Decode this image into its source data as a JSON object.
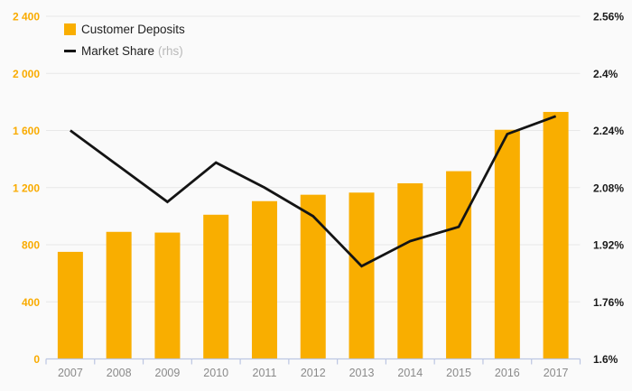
{
  "legend": {
    "deposits_label": "Customer Deposits",
    "market_share_label": "Market Share",
    "market_share_suffix": "(rhs)"
  },
  "colors": {
    "background": "#fafafa",
    "bar": "#f9ae00",
    "line": "#141414",
    "gridline": "#e8e8e8",
    "axis_line": "#bcc6e2",
    "left_axis_label": "#f9ab00",
    "right_axis_label": "#1a1a1a",
    "x_axis_label": "#8a8a8a",
    "legend_text": "#1f1f1f",
    "legend_suffix": "#b9b9b9"
  },
  "chart_data": {
    "type": "bar",
    "subtype": "bar-and-line-combo",
    "title": "",
    "categories": [
      "2007",
      "2008",
      "2009",
      "2010",
      "2011",
      "2012",
      "2013",
      "2014",
      "2015",
      "2016",
      "2017"
    ],
    "series": [
      {
        "name": "Customer Deposits",
        "type": "bar",
        "axis": "left",
        "color": "#f9ae00",
        "values": [
          750,
          890,
          885,
          1010,
          1105,
          1150,
          1165,
          1230,
          1315,
          1605,
          1730
        ]
      },
      {
        "name": "Market Share",
        "type": "line",
        "axis": "right",
        "unit": "%",
        "color": "#141414",
        "values": [
          2.24,
          2.14,
          2.04,
          2.15,
          2.08,
          2.0,
          1.86,
          1.93,
          1.97,
          2.23,
          2.28
        ]
      }
    ],
    "left_axis": {
      "min": 0,
      "max": 2400,
      "step": 400,
      "tick_labels": [
        "0",
        "400",
        "800",
        "1 200",
        "1 600",
        "2 000",
        "2 400"
      ]
    },
    "right_axis": {
      "min": 1.6,
      "max": 2.56,
      "step": 0.16,
      "tick_labels": [
        "1.6%",
        "1.76%",
        "1.92%",
        "2.08%",
        "2.24%",
        "2.4%",
        "2.56%"
      ]
    },
    "grid": true,
    "legend_position": "top-left"
  }
}
